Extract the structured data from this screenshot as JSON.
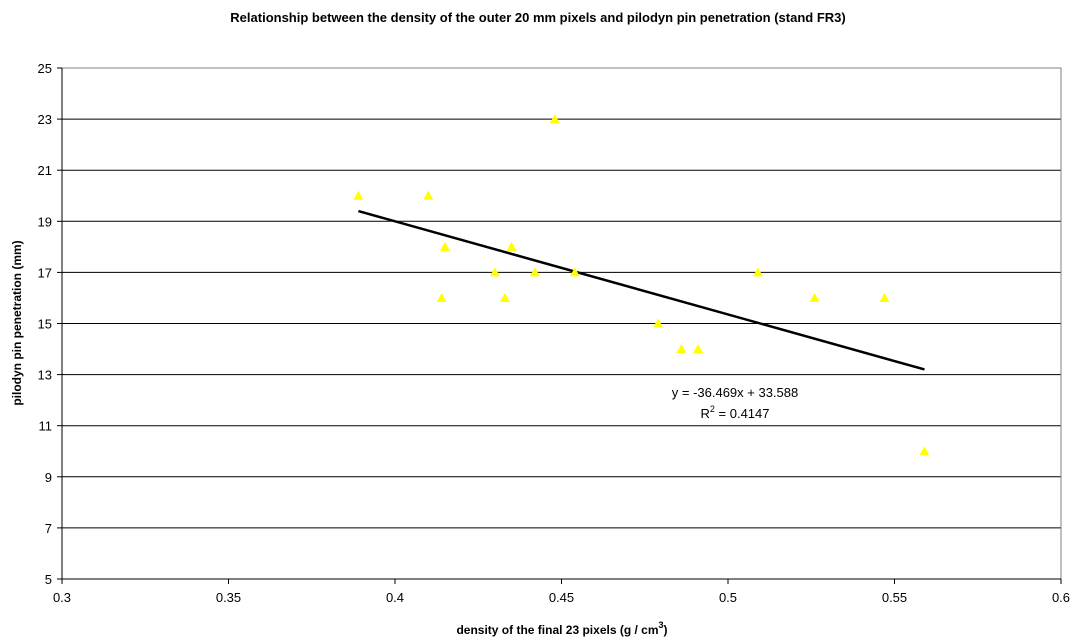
{
  "chart_data": {
    "type": "scatter",
    "title": "Relationship between the density of the outer 20 mm pixels and pilodyn pin penetration (stand FR3)",
    "xlabel": "density of the final 23 pixels (g / cm",
    "xlabel_superscript": "3",
    "xlabel_suffix": ")",
    "ylabel": "pilodyn pin penetration (mm)",
    "xlim": [
      0.3,
      0.6
    ],
    "ylim": [
      5,
      25
    ],
    "x_ticks": [
      "0.3",
      "0.35",
      "0.4",
      "0.45",
      "0.5",
      "0.55",
      "0.6"
    ],
    "y_ticks": [
      "5",
      "7",
      "9",
      "11",
      "13",
      "15",
      "17",
      "19",
      "21",
      "23",
      "25"
    ],
    "grid": "horizontal",
    "marker_color": "#ffff00",
    "trendline_color": "#000000",
    "series": [
      {
        "x": [
          0.389,
          0.41,
          0.415,
          0.414,
          0.43,
          0.433,
          0.435,
          0.442,
          0.448,
          0.454,
          0.479,
          0.486,
          0.491,
          0.509,
          0.526,
          0.547,
          0.559
        ],
        "y": [
          20,
          20,
          18,
          16,
          17,
          16,
          18,
          17,
          23,
          17,
          15,
          14,
          14,
          17,
          16,
          16,
          10
        ]
      }
    ],
    "trendline": {
      "slope": -36.469,
      "intercept": 33.588,
      "x_range": [
        0.389,
        0.559
      ],
      "equation": "y = -36.469x + 33.588",
      "r2_prefix": "R",
      "r2_superscript": "2",
      "r2_value": " = 0.4147"
    }
  }
}
